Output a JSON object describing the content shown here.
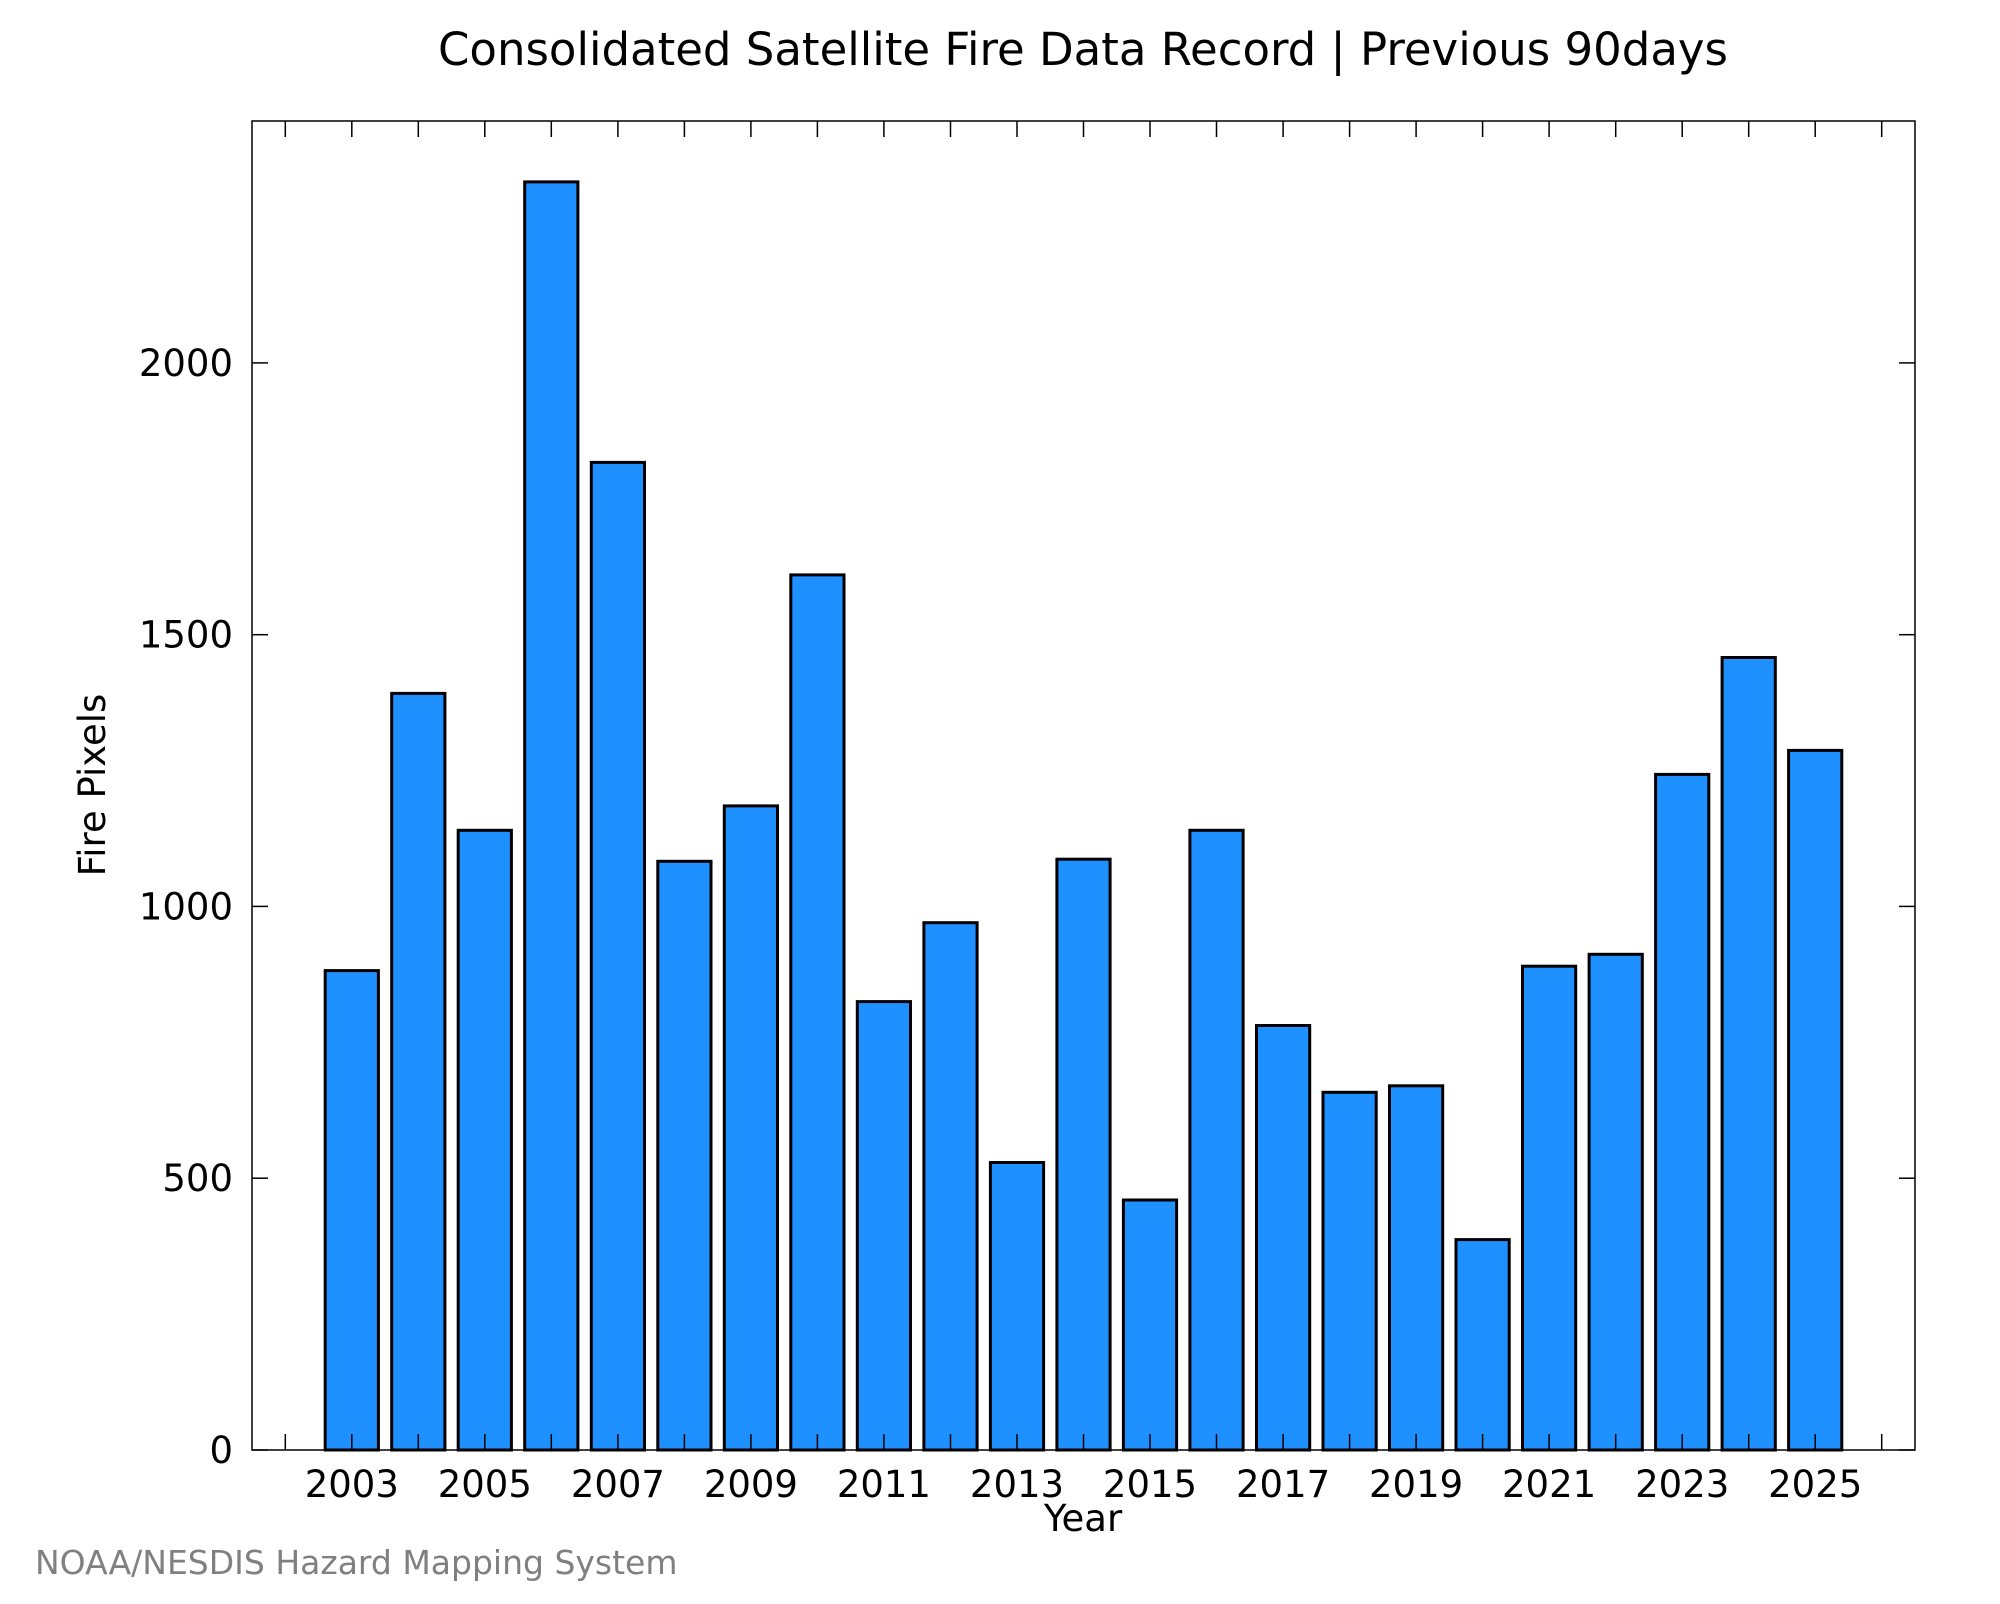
{
  "chart_data": {
    "type": "bar",
    "title": "Consolidated Satellite Fire Data Record | Previous 90days",
    "xlabel": "Year",
    "ylabel": "Fire Pixels",
    "credit": "NOAA/NESDIS Hazard Mapping System",
    "categories": [
      2003,
      2004,
      2005,
      2006,
      2007,
      2008,
      2009,
      2010,
      2011,
      2012,
      2013,
      2014,
      2015,
      2016,
      2017,
      2018,
      2019,
      2020,
      2021,
      2022,
      2023,
      2024,
      2025
    ],
    "values": [
      882,
      1392,
      1140,
      2333,
      1817,
      1083,
      1185,
      1610,
      825,
      970,
      529,
      1087,
      460,
      1140,
      781,
      658,
      670,
      387,
      890,
      912,
      1243,
      1458,
      1287
    ],
    "x_tick_labels": [
      "2003",
      "2005",
      "2007",
      "2009",
      "2011",
      "2013",
      "2015",
      "2017",
      "2019",
      "2021",
      "2023",
      "2025"
    ],
    "y_tick_labels": [
      "0",
      "500",
      "1000",
      "1500",
      "2000"
    ],
    "y_ticks": [
      0,
      500,
      1000,
      1500,
      2000
    ],
    "ylim": [
      0,
      2445
    ],
    "xlim": [
      2001.5,
      2026.5
    ],
    "grid": false,
    "colors": {
      "bar_fill": "#1e90ff",
      "bar_stroke": "#000000",
      "credit_text": "#808080"
    }
  }
}
